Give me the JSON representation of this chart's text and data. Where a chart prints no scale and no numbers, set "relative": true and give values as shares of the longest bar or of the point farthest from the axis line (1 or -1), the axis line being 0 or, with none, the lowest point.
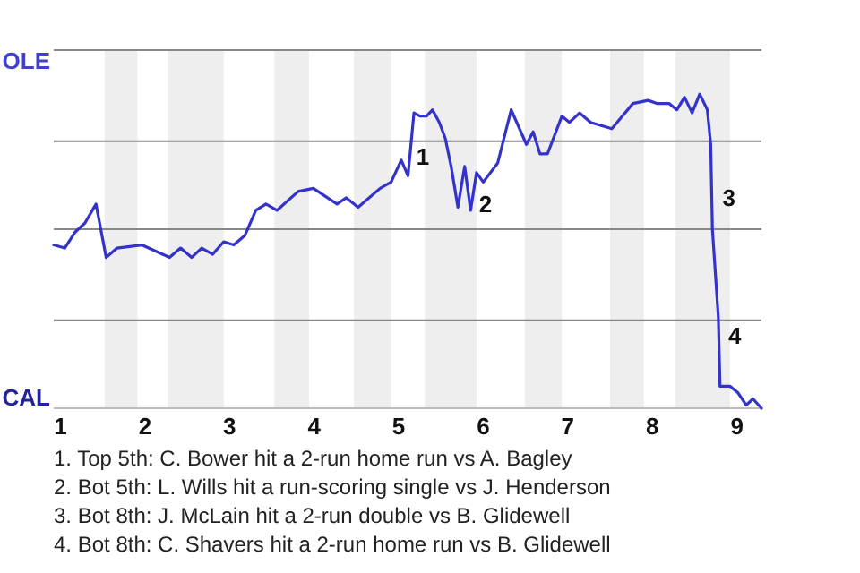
{
  "chart_data": {
    "type": "line",
    "relative": true,
    "x": [
      0.92,
      1.05,
      1.17,
      1.29,
      1.42,
      1.54,
      1.67,
      1.96,
      2.29,
      2.42,
      2.55,
      2.67,
      2.8,
      2.93,
      3.05,
      3.18,
      3.31,
      3.43,
      3.56,
      3.81,
      3.99,
      4.27,
      4.38,
      4.52,
      4.78,
      4.91,
      5.03,
      5.11,
      5.18,
      5.25,
      5.33,
      5.4,
      5.48,
      5.55,
      5.62,
      5.7,
      5.78,
      5.85,
      5.92,
      6.0,
      6.17,
      6.33,
      6.51,
      6.59,
      6.67,
      6.76,
      6.93,
      7.02,
      7.14,
      7.27,
      7.52,
      7.77,
      7.95,
      8.06,
      8.2,
      8.29,
      8.38,
      8.47,
      8.56,
      8.65,
      8.69,
      8.71,
      8.78,
      8.8,
      8.92,
      9.01,
      9.11,
      9.19,
      9.29
    ],
    "series": [
      {
        "color": "#3333cc",
        "values": [
          0.52,
          0.51,
          0.56,
          0.59,
          0.65,
          0.48,
          0.51,
          0.52,
          0.48,
          0.51,
          0.48,
          0.51,
          0.49,
          0.53,
          0.52,
          0.55,
          0.63,
          0.65,
          0.63,
          0.69,
          0.7,
          0.65,
          0.67,
          0.64,
          0.7,
          0.72,
          0.79,
          0.74,
          0.94,
          0.93,
          0.93,
          0.95,
          0.91,
          0.86,
          0.77,
          0.64,
          0.77,
          0.63,
          0.75,
          0.72,
          0.78,
          0.95,
          0.84,
          0.88,
          0.81,
          0.81,
          0.93,
          0.91,
          0.94,
          0.91,
          0.89,
          0.97,
          0.98,
          0.97,
          0.97,
          0.95,
          0.99,
          0.94,
          1,
          0.95,
          0.84,
          0.57,
          0.29,
          0.07,
          0.07,
          0.05,
          0.01,
          0.03,
          0
        ]
      }
    ],
    "xlim": [
      0.92,
      9.29
    ],
    "xticks": [
      1,
      2,
      3,
      4,
      5,
      6,
      7,
      8,
      9
    ],
    "marker": "none",
    "ref_lines": [
      {
        "axis": "y",
        "value": 0.28,
        "color": "#888888"
      },
      {
        "axis": "y",
        "value": 0.57,
        "color": "#888888"
      },
      {
        "axis": "y",
        "value": 0.85,
        "color": "#888888"
      },
      {
        "axis": "y",
        "value": 1.14,
        "color": "#888888"
      }
    ],
    "bands": [
      {
        "axis": "x",
        "from": 1.52,
        "to": 1.91,
        "color": "#eeeeee"
      },
      {
        "axis": "x",
        "from": 2.27,
        "to": 2.93,
        "color": "#eeeeee"
      },
      {
        "axis": "x",
        "from": 3.53,
        "to": 3.94,
        "color": "#eeeeee"
      },
      {
        "axis": "x",
        "from": 4.47,
        "to": 4.91,
        "color": "#eeeeee"
      },
      {
        "axis": "x",
        "from": 5.31,
        "to": 5.92,
        "color": "#eeeeee"
      },
      {
        "axis": "x",
        "from": 6.49,
        "to": 6.93,
        "color": "#eeeeee"
      },
      {
        "axis": "x",
        "from": 7.5,
        "to": 7.9,
        "color": "#eeeeee"
      },
      {
        "axis": "x",
        "from": 8.27,
        "to": 8.92,
        "color": "#eeeeee"
      }
    ],
    "annotations": [
      "OLE",
      "CAL",
      {
        "text": "1",
        "x": 5.18,
        "y": 0.8
      },
      {
        "text": "2",
        "x": 5.92,
        "y": 0.65
      },
      {
        "text": "3",
        "x": 8.8,
        "y": 0.67
      },
      {
        "text": "4",
        "x": 8.87,
        "y": 0.23
      },
      "1. Top 5th: C. Bower hit a 2-run home run vs A. Bagley",
      "2. Bot 5th: L. Wills hit a run-scoring single vs J. Henderson",
      "3. Bot 8th: J. McLain hit a 2-run double vs B. Glidewell",
      "4. Bot 8th: C. Shavers hit a 2-run home run vs B. Glidewell"
    ]
  }
}
